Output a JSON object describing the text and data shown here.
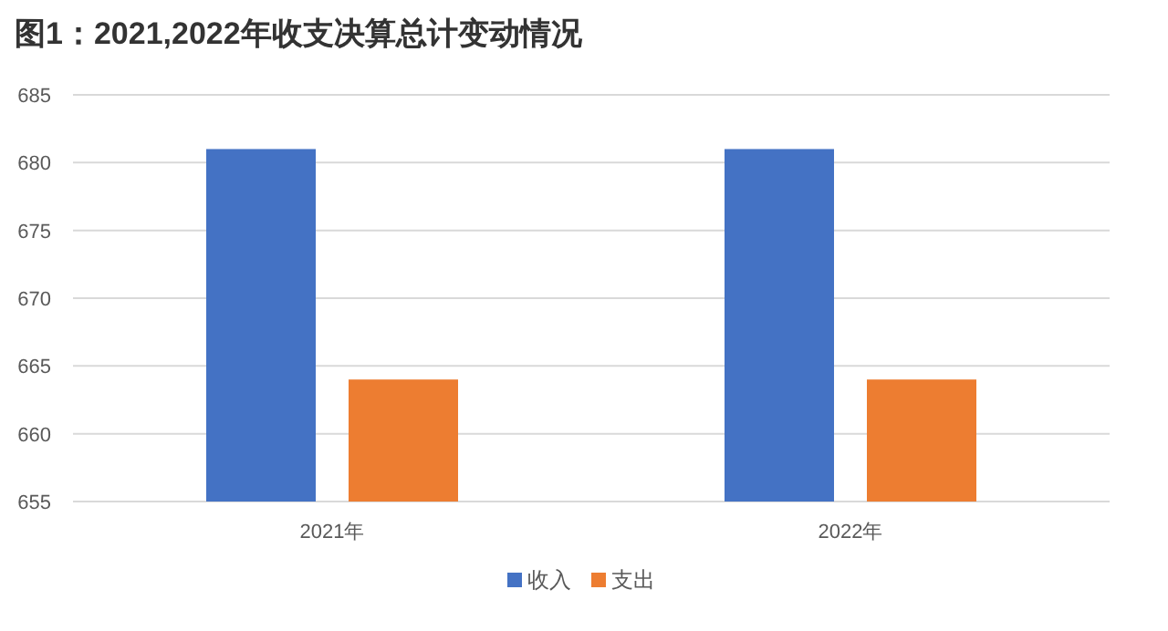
{
  "chart_data": {
    "type": "bar",
    "title": "图1：2021,2022年收支决算总计变动情况",
    "categories": [
      "2021年",
      "2022年"
    ],
    "series": [
      {
        "name": "收入",
        "color": "#4472c4",
        "values": [
          681,
          681
        ]
      },
      {
        "name": "支出",
        "color": "#ed7d31",
        "values": [
          664,
          664
        ]
      }
    ],
    "ylim": [
      655,
      685
    ],
    "yticks": [
      655,
      660,
      665,
      670,
      675,
      680,
      685
    ],
    "grid": "y",
    "legend": "bottom"
  }
}
